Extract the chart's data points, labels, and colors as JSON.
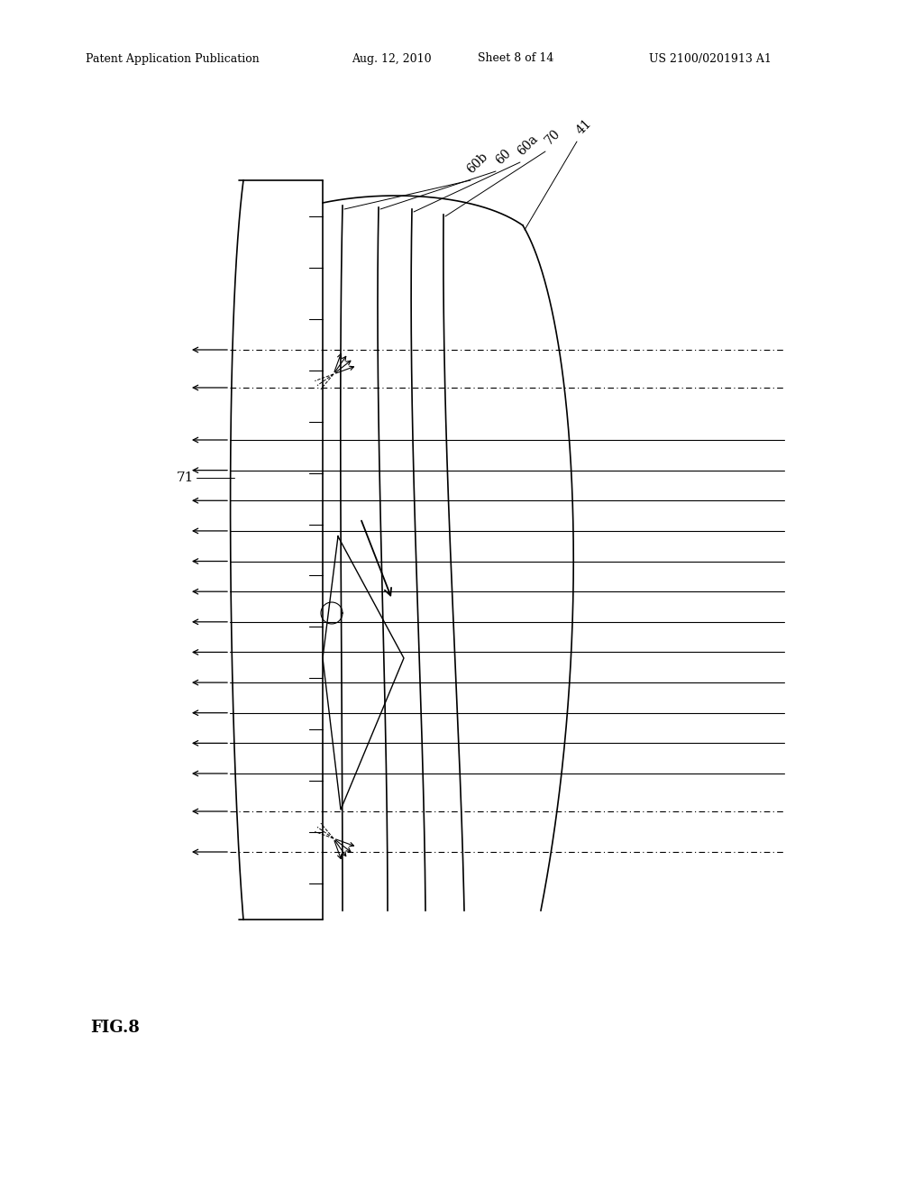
{
  "bg_color": "#ffffff",
  "line_color": "#000000",
  "header_left": "Patent Application Publication",
  "header_mid": "Aug. 12, 2010  Sheet 8 of 14",
  "header_right": "US 2100/0201913 A1",
  "fig_label": "FIG.8",
  "label_71": "71",
  "labels_top": [
    "60b",
    "60",
    "60a",
    "70",
    "41"
  ]
}
